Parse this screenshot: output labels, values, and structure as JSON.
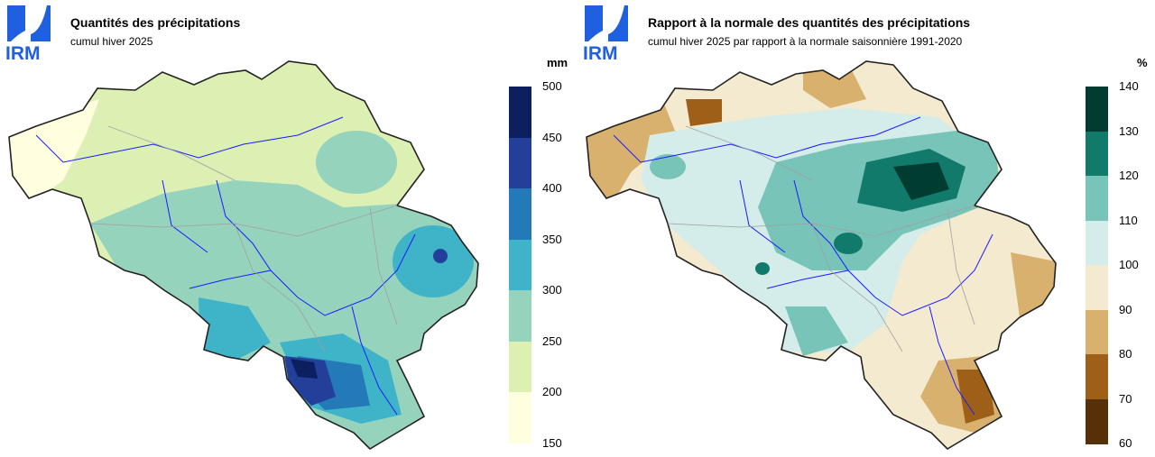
{
  "left": {
    "logo_text": "IRM",
    "title": "Quantités des précipitations",
    "subtitle": "cumul hiver 2025",
    "unit": "mm",
    "legend": {
      "ticks": [
        "500",
        "450",
        "400",
        "350",
        "300",
        "250",
        "200",
        "150"
      ],
      "colors": [
        "#0c1f5e",
        "#233f9a",
        "#2479b8",
        "#3fb3c8",
        "#96d3bd",
        "#ddf0b4",
        "#ffffe0"
      ]
    }
  },
  "right": {
    "logo_text": "IRM",
    "title": "Rapport à la normale des quantités des précipitations",
    "subtitle": "cumul hiver 2025 par rapport à la normale saisonnière 1991-2020",
    "unit": "%",
    "legend": {
      "ticks": [
        "140",
        "130",
        "120",
        "110",
        "100",
        "90",
        "80",
        "70",
        "60"
      ],
      "colors": [
        "#003c30",
        "#127a6b",
        "#78c4b8",
        "#d4ecea",
        "#f4ead0",
        "#d9b16e",
        "#9e6018",
        "#563108"
      ]
    }
  }
}
